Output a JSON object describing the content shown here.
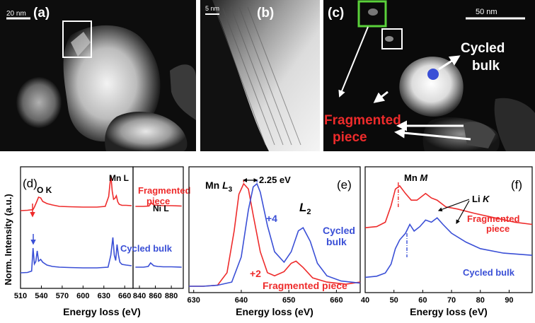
{
  "colors": {
    "fragmented": "#ee2b2b",
    "cycled": "#3a4fd6",
    "accent_green": "#5ad13a",
    "image_bg": "#111111"
  },
  "images": {
    "a": {
      "label": "(a)",
      "scale_bar": "20 nm"
    },
    "b": {
      "label": "(b)",
      "scale_bar": "5 nm"
    },
    "c": {
      "label": "(c)",
      "scale_bar": "50 nm",
      "annot_cycled": [
        "Cycled",
        "bulk"
      ],
      "annot_fragmented": [
        "Fragmented",
        "piece"
      ]
    }
  },
  "shared_ylabel": "Norm. Intensity (a.u.)",
  "chart_data": [
    {
      "panel": "(d)",
      "type": "line",
      "xlabel": "Energy loss (eV)",
      "ylabel": "Norm. Intensity (a.u.)",
      "segments": [
        {
          "xlim": [
            510,
            672
          ],
          "ticks": [
            510,
            540,
            570,
            600,
            630,
            660
          ]
        },
        {
          "xlim": [
            832,
            895
          ],
          "ticks": [
            840,
            860,
            880
          ]
        }
      ],
      "annotations": {
        "ok": "O K",
        "mnl": "Mn L",
        "nil": "Ni L",
        "frag_label": [
          "Fragmented",
          "piece"
        ],
        "cycled_label": "Cycled bulk"
      },
      "series": [
        {
          "name": "Fragmented piece",
          "color": "red",
          "x": [
            510,
            520,
            528,
            530,
            533,
            536,
            539,
            542,
            548,
            556,
            566,
            580,
            600,
            620,
            632,
            637,
            640,
            642,
            644,
            646,
            648,
            650,
            652,
            656,
            662,
            670,
            835,
            845,
            852,
            855,
            858,
            863,
            870,
            880,
            893
          ],
          "y": [
            0.0,
            0.01,
            0.03,
            0.1,
            0.24,
            0.38,
            0.36,
            0.26,
            0.2,
            0.16,
            0.12,
            0.11,
            0.1,
            0.1,
            0.12,
            0.4,
            1.0,
            0.55,
            0.32,
            0.35,
            0.42,
            0.25,
            0.18,
            0.15,
            0.15,
            0.14,
            0.12,
            0.12,
            0.13,
            0.22,
            0.16,
            0.15,
            0.14,
            0.14,
            0.13
          ]
        },
        {
          "name": "Cycled bulk",
          "color": "blue",
          "x": [
            510,
            520,
            526,
            528,
            530,
            532,
            534,
            536,
            539,
            542,
            548,
            556,
            566,
            580,
            600,
            620,
            636,
            640,
            643,
            645,
            647,
            649,
            651,
            653,
            656,
            662,
            670,
            835,
            845,
            851,
            854,
            858,
            863,
            870,
            880,
            893
          ],
          "y": [
            0.0,
            0.01,
            0.05,
            0.7,
            0.25,
            0.32,
            0.62,
            0.33,
            0.38,
            0.3,
            0.22,
            0.18,
            0.16,
            0.15,
            0.14,
            0.14,
            0.16,
            0.5,
            1.0,
            0.5,
            0.35,
            0.8,
            0.5,
            0.3,
            0.24,
            0.22,
            0.2,
            0.16,
            0.16,
            0.18,
            0.28,
            0.2,
            0.18,
            0.17,
            0.17,
            0.16
          ]
        }
      ]
    },
    {
      "panel": "(e)",
      "type": "line",
      "xlabel": "Energy loss (eV)",
      "xlim": [
        629,
        665
      ],
      "xticks": [
        630,
        640,
        650,
        660
      ],
      "annotations": {
        "mnl3": "Mn L3",
        "shift": "2.25 eV",
        "l2": "L2",
        "plus4": "+4",
        "plus2": "+2",
        "cycled_label": [
          "Cycled",
          "bulk"
        ],
        "frag_label": "Fragmented piece"
      },
      "series": [
        {
          "name": "Fragmented piece",
          "color": "red",
          "x": [
            629,
            632,
            635,
            637,
            638.5,
            639.5,
            640.5,
            641.5,
            642.5,
            644,
            645.5,
            647,
            649,
            650.5,
            651.5,
            653,
            655,
            658,
            662,
            665
          ],
          "y": [
            0.02,
            0.02,
            0.03,
            0.15,
            0.55,
            0.9,
            1.0,
            0.95,
            0.7,
            0.35,
            0.15,
            0.12,
            0.16,
            0.24,
            0.26,
            0.2,
            0.1,
            0.06,
            0.04,
            0.06
          ]
        },
        {
          "name": "Cycled bulk",
          "color": "blue",
          "x": [
            629,
            632,
            635,
            638,
            640,
            641.5,
            642.5,
            643.3,
            644,
            645.5,
            647,
            649,
            650.5,
            652,
            653,
            654.5,
            656,
            658,
            661,
            665
          ],
          "y": [
            0.02,
            0.02,
            0.03,
            0.06,
            0.3,
            0.75,
            0.97,
            1.0,
            0.92,
            0.6,
            0.35,
            0.25,
            0.35,
            0.55,
            0.58,
            0.45,
            0.24,
            0.12,
            0.07,
            0.05
          ]
        }
      ]
    },
    {
      "panel": "(f)",
      "type": "line",
      "xlabel": "Energy loss (eV)",
      "xlim": [
        40,
        98
      ],
      "xticks": [
        40,
        50,
        60,
        70,
        80,
        90
      ],
      "annotations": {
        "mnm": "Mn M",
        "lik": "Li K",
        "frag_label": [
          "Fragmented",
          "piece"
        ],
        "cycled_label": "Cycled bulk"
      },
      "series": [
        {
          "name": "Fragmented piece",
          "color": "red",
          "x": [
            40,
            44,
            47,
            49,
            50.5,
            52,
            54,
            56,
            58,
            61,
            63,
            65,
            68,
            72,
            78,
            85,
            92,
            98
          ],
          "y": [
            0.55,
            0.56,
            0.6,
            0.75,
            0.9,
            0.93,
            0.86,
            0.8,
            0.8,
            0.86,
            0.82,
            0.8,
            0.74,
            0.72,
            0.68,
            0.64,
            0.6,
            0.58
          ]
        },
        {
          "name": "Cycled bulk",
          "color": "blue",
          "x": [
            40,
            44,
            47,
            49,
            50.5,
            52,
            54,
            55.5,
            57,
            59,
            61,
            63,
            65,
            67,
            70,
            75,
            80,
            88,
            98
          ],
          "y": [
            0.1,
            0.11,
            0.14,
            0.22,
            0.36,
            0.44,
            0.5,
            0.58,
            0.52,
            0.56,
            0.62,
            0.6,
            0.64,
            0.58,
            0.5,
            0.42,
            0.36,
            0.32,
            0.3
          ]
        }
      ]
    }
  ]
}
